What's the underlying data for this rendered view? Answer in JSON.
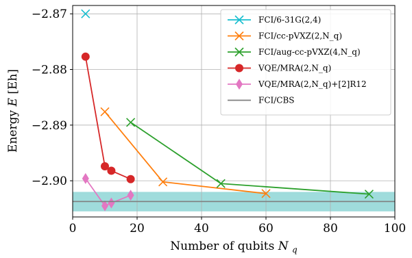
{
  "chart_data": {
    "type": "line",
    "xlabel": "Number of qubits",
    "xlabel_symbol": "N",
    "xlabel_sub": "q",
    "ylabel": "Energy",
    "ylabel_symbol": "E",
    "ylabel_unit": "[Eh]",
    "xlim": [
      0,
      100
    ],
    "ylim": [
      -2.9065,
      -2.8685
    ],
    "xticks": [
      0,
      20,
      40,
      60,
      80,
      100
    ],
    "xtick_labels": [
      "0",
      "20",
      "40",
      "60",
      "80",
      "100"
    ],
    "yticks": [
      -2.87,
      -2.88,
      -2.89,
      -2.9
    ],
    "ytick_labels": [
      "−2.87",
      "−2.88",
      "−2.89",
      "−2.90"
    ],
    "grid": true,
    "legend_position": "top-right",
    "series": [
      {
        "name": "FCI/6-31G(2,4)",
        "color": "#17becf",
        "marker": "x",
        "x": [
          4
        ],
        "y": [
          -2.87
        ]
      },
      {
        "name": "FCI/cc-pVXZ(2,N_q)",
        "color": "#ff7f0e",
        "marker": "x",
        "x": [
          10,
          28,
          60
        ],
        "y": [
          -2.8876,
          -2.9002,
          -2.9023
        ]
      },
      {
        "name": "FCI/aug-cc-pVXZ(4,N_q)",
        "color": "#2ca02c",
        "marker": "x",
        "x": [
          18,
          46,
          92
        ],
        "y": [
          -2.8895,
          -2.9005,
          -2.9024
        ]
      },
      {
        "name": "VQE/MRA(2,N_q)",
        "color": "#d62728",
        "marker": "circle",
        "x": [
          4,
          10,
          12,
          18
        ],
        "y": [
          -2.8777,
          -2.8974,
          -2.8982,
          -2.8997
        ]
      },
      {
        "name": "VQE/MRA(2,N_q)+[2]R12",
        "color": "#e377c2",
        "marker": "diamond",
        "x": [
          4,
          10,
          12,
          18
        ],
        "y": [
          -2.8996,
          -2.9045,
          -2.904,
          -2.9026
        ]
      },
      {
        "name": "FCI/CBS",
        "color": "#7f7f7f",
        "marker": "none",
        "hline": -2.90372,
        "band": [
          -2.9055,
          -2.902
        ],
        "band_color": "#9fdcdc"
      }
    ]
  }
}
